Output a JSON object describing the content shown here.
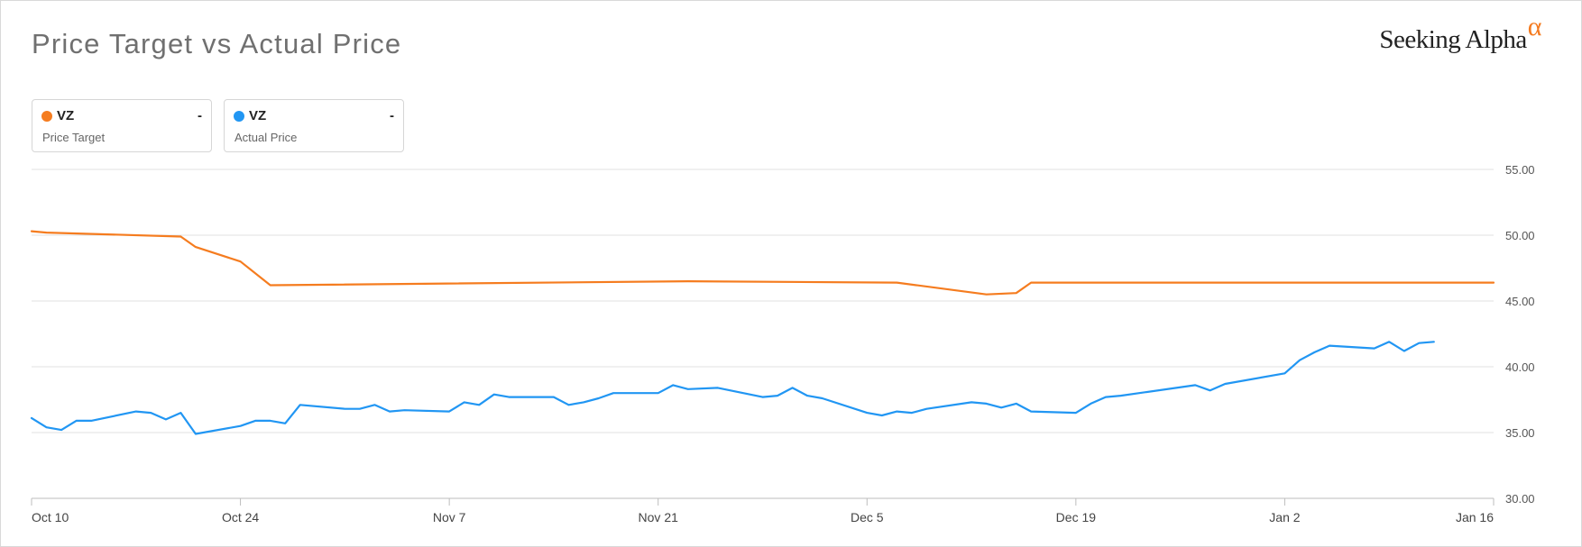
{
  "header": {
    "title": "Price Target vs Actual Price",
    "brand_text": "Seeking Alpha",
    "brand_symbol": "α"
  },
  "legend": [
    {
      "ticker": "VZ",
      "value": "-",
      "label": "Price Target",
      "color": "#f57c1f"
    },
    {
      "ticker": "VZ",
      "value": "-",
      "label": "Actual Price",
      "color": "#2196f3"
    }
  ],
  "chart_data": {
    "type": "line",
    "x_axis": {
      "start": "2023-10-10",
      "end": "2024-01-16",
      "tick_labels": [
        {
          "date": "2023-10-10",
          "label": "Oct 10"
        },
        {
          "date": "2023-10-24",
          "label": "Oct 24"
        },
        {
          "date": "2023-11-07",
          "label": "Nov 7"
        },
        {
          "date": "2023-11-21",
          "label": "Nov 21"
        },
        {
          "date": "2023-12-05",
          "label": "Dec 5"
        },
        {
          "date": "2023-12-19",
          "label": "Dec 19"
        },
        {
          "date": "2024-01-02",
          "label": "Jan 2"
        },
        {
          "date": "2024-01-16",
          "label": "Jan 16"
        }
      ]
    },
    "y_axis": {
      "min": 30,
      "max": 55,
      "ticks": [
        "30.00",
        "35.00",
        "40.00",
        "45.00",
        "50.00",
        "55.00"
      ],
      "position": "right",
      "grid": true
    },
    "series": [
      {
        "name": "Price Target",
        "color": "#f57c1f",
        "points": [
          [
            "2023-10-10",
            50.3
          ],
          [
            "2023-10-11",
            50.2
          ],
          [
            "2023-10-20",
            49.9
          ],
          [
            "2023-10-21",
            49.1
          ],
          [
            "2023-10-24",
            48.0
          ],
          [
            "2023-10-26",
            46.2
          ],
          [
            "2023-11-23",
            46.5
          ],
          [
            "2023-12-07",
            46.4
          ],
          [
            "2023-12-13",
            45.5
          ],
          [
            "2023-12-15",
            45.6
          ],
          [
            "2023-12-16",
            46.4
          ],
          [
            "2024-01-16",
            46.4
          ]
        ]
      },
      {
        "name": "Actual Price",
        "color": "#2196f3",
        "points": [
          [
            "2023-10-10",
            36.1
          ],
          [
            "2023-10-11",
            35.4
          ],
          [
            "2023-10-12",
            35.2
          ],
          [
            "2023-10-13",
            35.9
          ],
          [
            "2023-10-14",
            35.9
          ],
          [
            "2023-10-17",
            36.6
          ],
          [
            "2023-10-18",
            36.5
          ],
          [
            "2023-10-19",
            36.0
          ],
          [
            "2023-10-20",
            36.5
          ],
          [
            "2023-10-21",
            34.9
          ],
          [
            "2023-10-24",
            35.5
          ],
          [
            "2023-10-25",
            35.9
          ],
          [
            "2023-10-26",
            35.9
          ],
          [
            "2023-10-27",
            35.7
          ],
          [
            "2023-10-28",
            37.1
          ],
          [
            "2023-10-31",
            36.8
          ],
          [
            "2023-11-01",
            36.8
          ],
          [
            "2023-11-02",
            37.1
          ],
          [
            "2023-11-03",
            36.6
          ],
          [
            "2023-11-04",
            36.7
          ],
          [
            "2023-11-07",
            36.6
          ],
          [
            "2023-11-08",
            37.3
          ],
          [
            "2023-11-09",
            37.1
          ],
          [
            "2023-11-10",
            37.9
          ],
          [
            "2023-11-11",
            37.7
          ],
          [
            "2023-11-14",
            37.7
          ],
          [
            "2023-11-15",
            37.1
          ],
          [
            "2023-11-16",
            37.3
          ],
          [
            "2023-11-17",
            37.6
          ],
          [
            "2023-11-18",
            38.0
          ],
          [
            "2023-11-21",
            38.0
          ],
          [
            "2023-11-22",
            38.6
          ],
          [
            "2023-11-23",
            38.3
          ],
          [
            "2023-11-25",
            38.4
          ],
          [
            "2023-11-28",
            37.7
          ],
          [
            "2023-11-29",
            37.8
          ],
          [
            "2023-11-30",
            38.4
          ],
          [
            "2023-12-01",
            37.8
          ],
          [
            "2023-12-02",
            37.6
          ],
          [
            "2023-12-05",
            36.5
          ],
          [
            "2023-12-06",
            36.3
          ],
          [
            "2023-12-07",
            36.6
          ],
          [
            "2023-12-08",
            36.5
          ],
          [
            "2023-12-09",
            36.8
          ],
          [
            "2023-12-12",
            37.3
          ],
          [
            "2023-12-13",
            37.2
          ],
          [
            "2023-12-14",
            36.9
          ],
          [
            "2023-12-15",
            37.2
          ],
          [
            "2023-12-16",
            36.6
          ],
          [
            "2023-12-19",
            36.5
          ],
          [
            "2023-12-20",
            37.2
          ],
          [
            "2023-12-21",
            37.7
          ],
          [
            "2023-12-22",
            37.8
          ],
          [
            "2023-12-27",
            38.6
          ],
          [
            "2023-12-28",
            38.2
          ],
          [
            "2023-12-29",
            38.7
          ],
          [
            "2024-01-02",
            39.5
          ],
          [
            "2024-01-03",
            40.5
          ],
          [
            "2024-01-04",
            41.1
          ],
          [
            "2024-01-05",
            41.6
          ],
          [
            "2024-01-08",
            41.4
          ],
          [
            "2024-01-09",
            41.9
          ],
          [
            "2024-01-10",
            41.2
          ],
          [
            "2024-01-11",
            41.8
          ],
          [
            "2024-01-12",
            41.9
          ]
        ]
      }
    ]
  }
}
